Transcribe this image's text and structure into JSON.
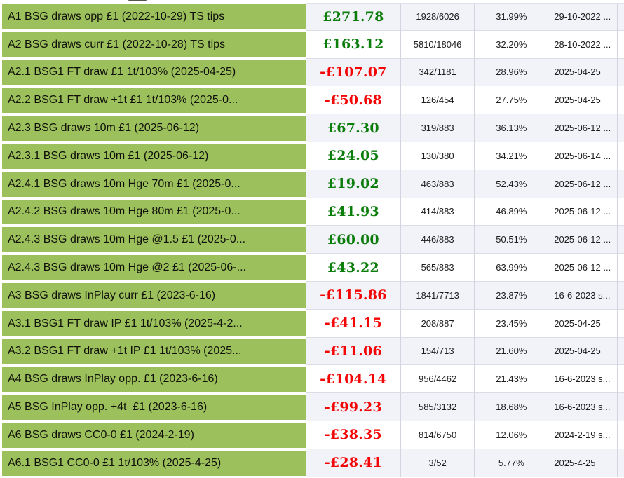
{
  "colors": {
    "label_background": "#9cc15c",
    "positive_value": "#0b7d0b",
    "negative_value": "#f30505",
    "odd_row_background": "#f2f2f9",
    "even_row_background": "#ffffff"
  },
  "table": {
    "rows": [
      {
        "label": "A1 BSG draws opp £1 (2022-10-29) TS tips",
        "value": "£271.78",
        "fraction": "1928/6026",
        "percent": "31.99%",
        "date": "29-10-2022 ..."
      },
      {
        "label": "A2 BSG draws curr £1 (2022-10-28) TS tips",
        "value": "£163.12",
        "fraction": "5810/18046",
        "percent": "32.20%",
        "date": "28-10-2022 ..."
      },
      {
        "label": "A2.1 BSG1 FT draw £1 1t/103% (2025-04-25)",
        "value": "-£107.07",
        "fraction": "342/1181",
        "percent": "28.96%",
        "date": "2025-04-25"
      },
      {
        "label": "A2.2 BSG1 FT draw +1t £1 1t/103% (2025-0...",
        "value": "-£50.68",
        "fraction": "126/454",
        "percent": "27.75%",
        "date": "2025-04-25"
      },
      {
        "label": "A2.3 BSG draws 10m £1 (2025-06-12)",
        "value": "£67.30",
        "fraction": "319/883",
        "percent": "36.13%",
        "date": "2025-06-12 ..."
      },
      {
        "label": "A2.3.1 BSG draws 10m £1 (2025-06-12)",
        "value": "£24.05",
        "fraction": "130/380",
        "percent": "34.21%",
        "date": "2025-06-14 ..."
      },
      {
        "label": "A2.4.1 BSG draws 10m Hge 70m £1 (2025-0...",
        "value": "£19.02",
        "fraction": "463/883",
        "percent": "52.43%",
        "date": "2025-06-12 ..."
      },
      {
        "label": "A2.4.2 BSG draws 10m Hge 80m £1 (2025-0...",
        "value": "£41.93",
        "fraction": "414/883",
        "percent": "46.89%",
        "date": "2025-06-12 ..."
      },
      {
        "label": "A2.4.3 BSG draws 10m Hge @1.5 £1 (2025-0...",
        "value": "£60.00",
        "fraction": "446/883",
        "percent": "50.51%",
        "date": "2025-06-12 ..."
      },
      {
        "label": "A2.4.3 BSG draws 10m Hge @2 £1 (2025-06-...",
        "value": "£43.22",
        "fraction": "565/883",
        "percent": "63.99%",
        "date": "2025-06-12 ..."
      },
      {
        "label": "A3 BSG draws InPlay curr £1 (2023-6-16)",
        "value": "-£115.86",
        "fraction": "1841/7713",
        "percent": "23.87%",
        "date": "16-6-2023 s..."
      },
      {
        "label": "A3.1 BSG1 FT draw IP £1 1t/103% (2025-4-2...",
        "value": "-£41.15",
        "fraction": "208/887",
        "percent": "23.45%",
        "date": "2025-04-25"
      },
      {
        "label": "A3.2 BSG1 FT draw +1t IP £1 1t/103% (2025...",
        "value": "-£11.06",
        "fraction": "154/713",
        "percent": "21.60%",
        "date": "2025-04-25"
      },
      {
        "label": "A4 BSG draws InPlay opp. £1 (2023-6-16)",
        "value": "-£104.14",
        "fraction": "956/4462",
        "percent": "21.43%",
        "date": "16-6-2023 s..."
      },
      {
        "label": "A5 BSG InPlay opp. +4t  £1 (2023-6-16)",
        "value": "-£99.23",
        "fraction": "585/3132",
        "percent": "18.68%",
        "date": "16-6-2023 s..."
      },
      {
        "label": "A6 BSG draws CC0-0 £1 (2024-2-19)",
        "value": "-£38.35",
        "fraction": "814/6750",
        "percent": "12.06%",
        "date": "2024-2-19 s..."
      },
      {
        "label": "A6.1 BSG1 CC0-0 £1 1t/103% (2025-4-25)",
        "value": "-£28.41",
        "fraction": "3/52",
        "percent": "5.77%",
        "date": "2025-4-25"
      }
    ]
  }
}
